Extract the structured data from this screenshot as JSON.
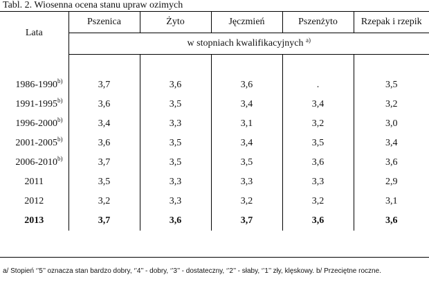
{
  "title": "Tabl. 2. Wiosenna ocena stanu upraw ozimych",
  "header": {
    "row_label": "Lata",
    "columns": [
      "Pszenica",
      "Żyto",
      "Jęczmień",
      "Pszenżyto",
      "Rzepak i rzepik"
    ],
    "units": "w stopniach kwalifikacyjnych",
    "units_note": "a)"
  },
  "rows": [
    {
      "year": "1986-1990",
      "note": "b)",
      "values": [
        "3,7",
        "3,6",
        "3,6",
        ".",
        "3,5"
      ]
    },
    {
      "year": "1991-1995",
      "note": "b)",
      "values": [
        "3,6",
        "3,5",
        "3,4",
        "3,4",
        "3,2"
      ]
    },
    {
      "year": "1996-2000",
      "note": "b)",
      "values": [
        "3,4",
        "3,3",
        "3,1",
        "3,2",
        "3,0"
      ]
    },
    {
      "year": "2001-2005",
      "note": "b)",
      "values": [
        "3,6",
        "3,5",
        "3,4",
        "3,5",
        "3,4"
      ]
    },
    {
      "year": "2006-2010",
      "note": "b)",
      "values": [
        "3,7",
        "3,5",
        "3,5",
        "3,6",
        "3,6"
      ]
    },
    {
      "year": "2011",
      "note": "",
      "values": [
        "3,5",
        "3,3",
        "3,3",
        "3,3",
        "2,9"
      ]
    },
    {
      "year": "2012",
      "note": "",
      "values": [
        "3,2",
        "3,3",
        "3,2",
        "3,2",
        "3,1"
      ]
    },
    {
      "year": "2013",
      "note": "",
      "bold": true,
      "values": [
        "3,7",
        "3,6",
        "3,7",
        "3,6",
        "3,6"
      ]
    }
  ],
  "footnote": "a/ Stopień ‘’5’’ oznacza stan bardzo dobry, ‘’4’’ - dobry, ‘’3’’ - dostateczny, ‘’2’’ - słaby, ‘’1’’ zły, klęskowy. b/ Przeciętne roczne."
}
